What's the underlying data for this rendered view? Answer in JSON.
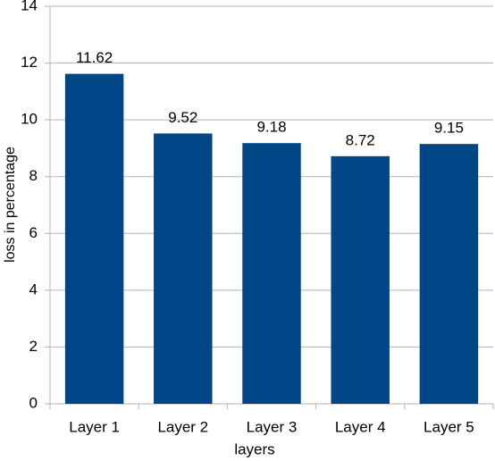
{
  "chart_data": {
    "type": "bar",
    "categories": [
      "Layer 1",
      "Layer 2",
      "Layer 3",
      "Layer 4",
      "Layer 5"
    ],
    "values": [
      11.62,
      9.52,
      9.18,
      8.72,
      9.15
    ],
    "color": "#004586",
    "xlabel": "layers",
    "ylabel": "loss in percentage",
    "ylim": [
      0,
      14
    ],
    "yticks": [
      0,
      2,
      4,
      6,
      8,
      10,
      12,
      14
    ],
    "grid": true
  }
}
